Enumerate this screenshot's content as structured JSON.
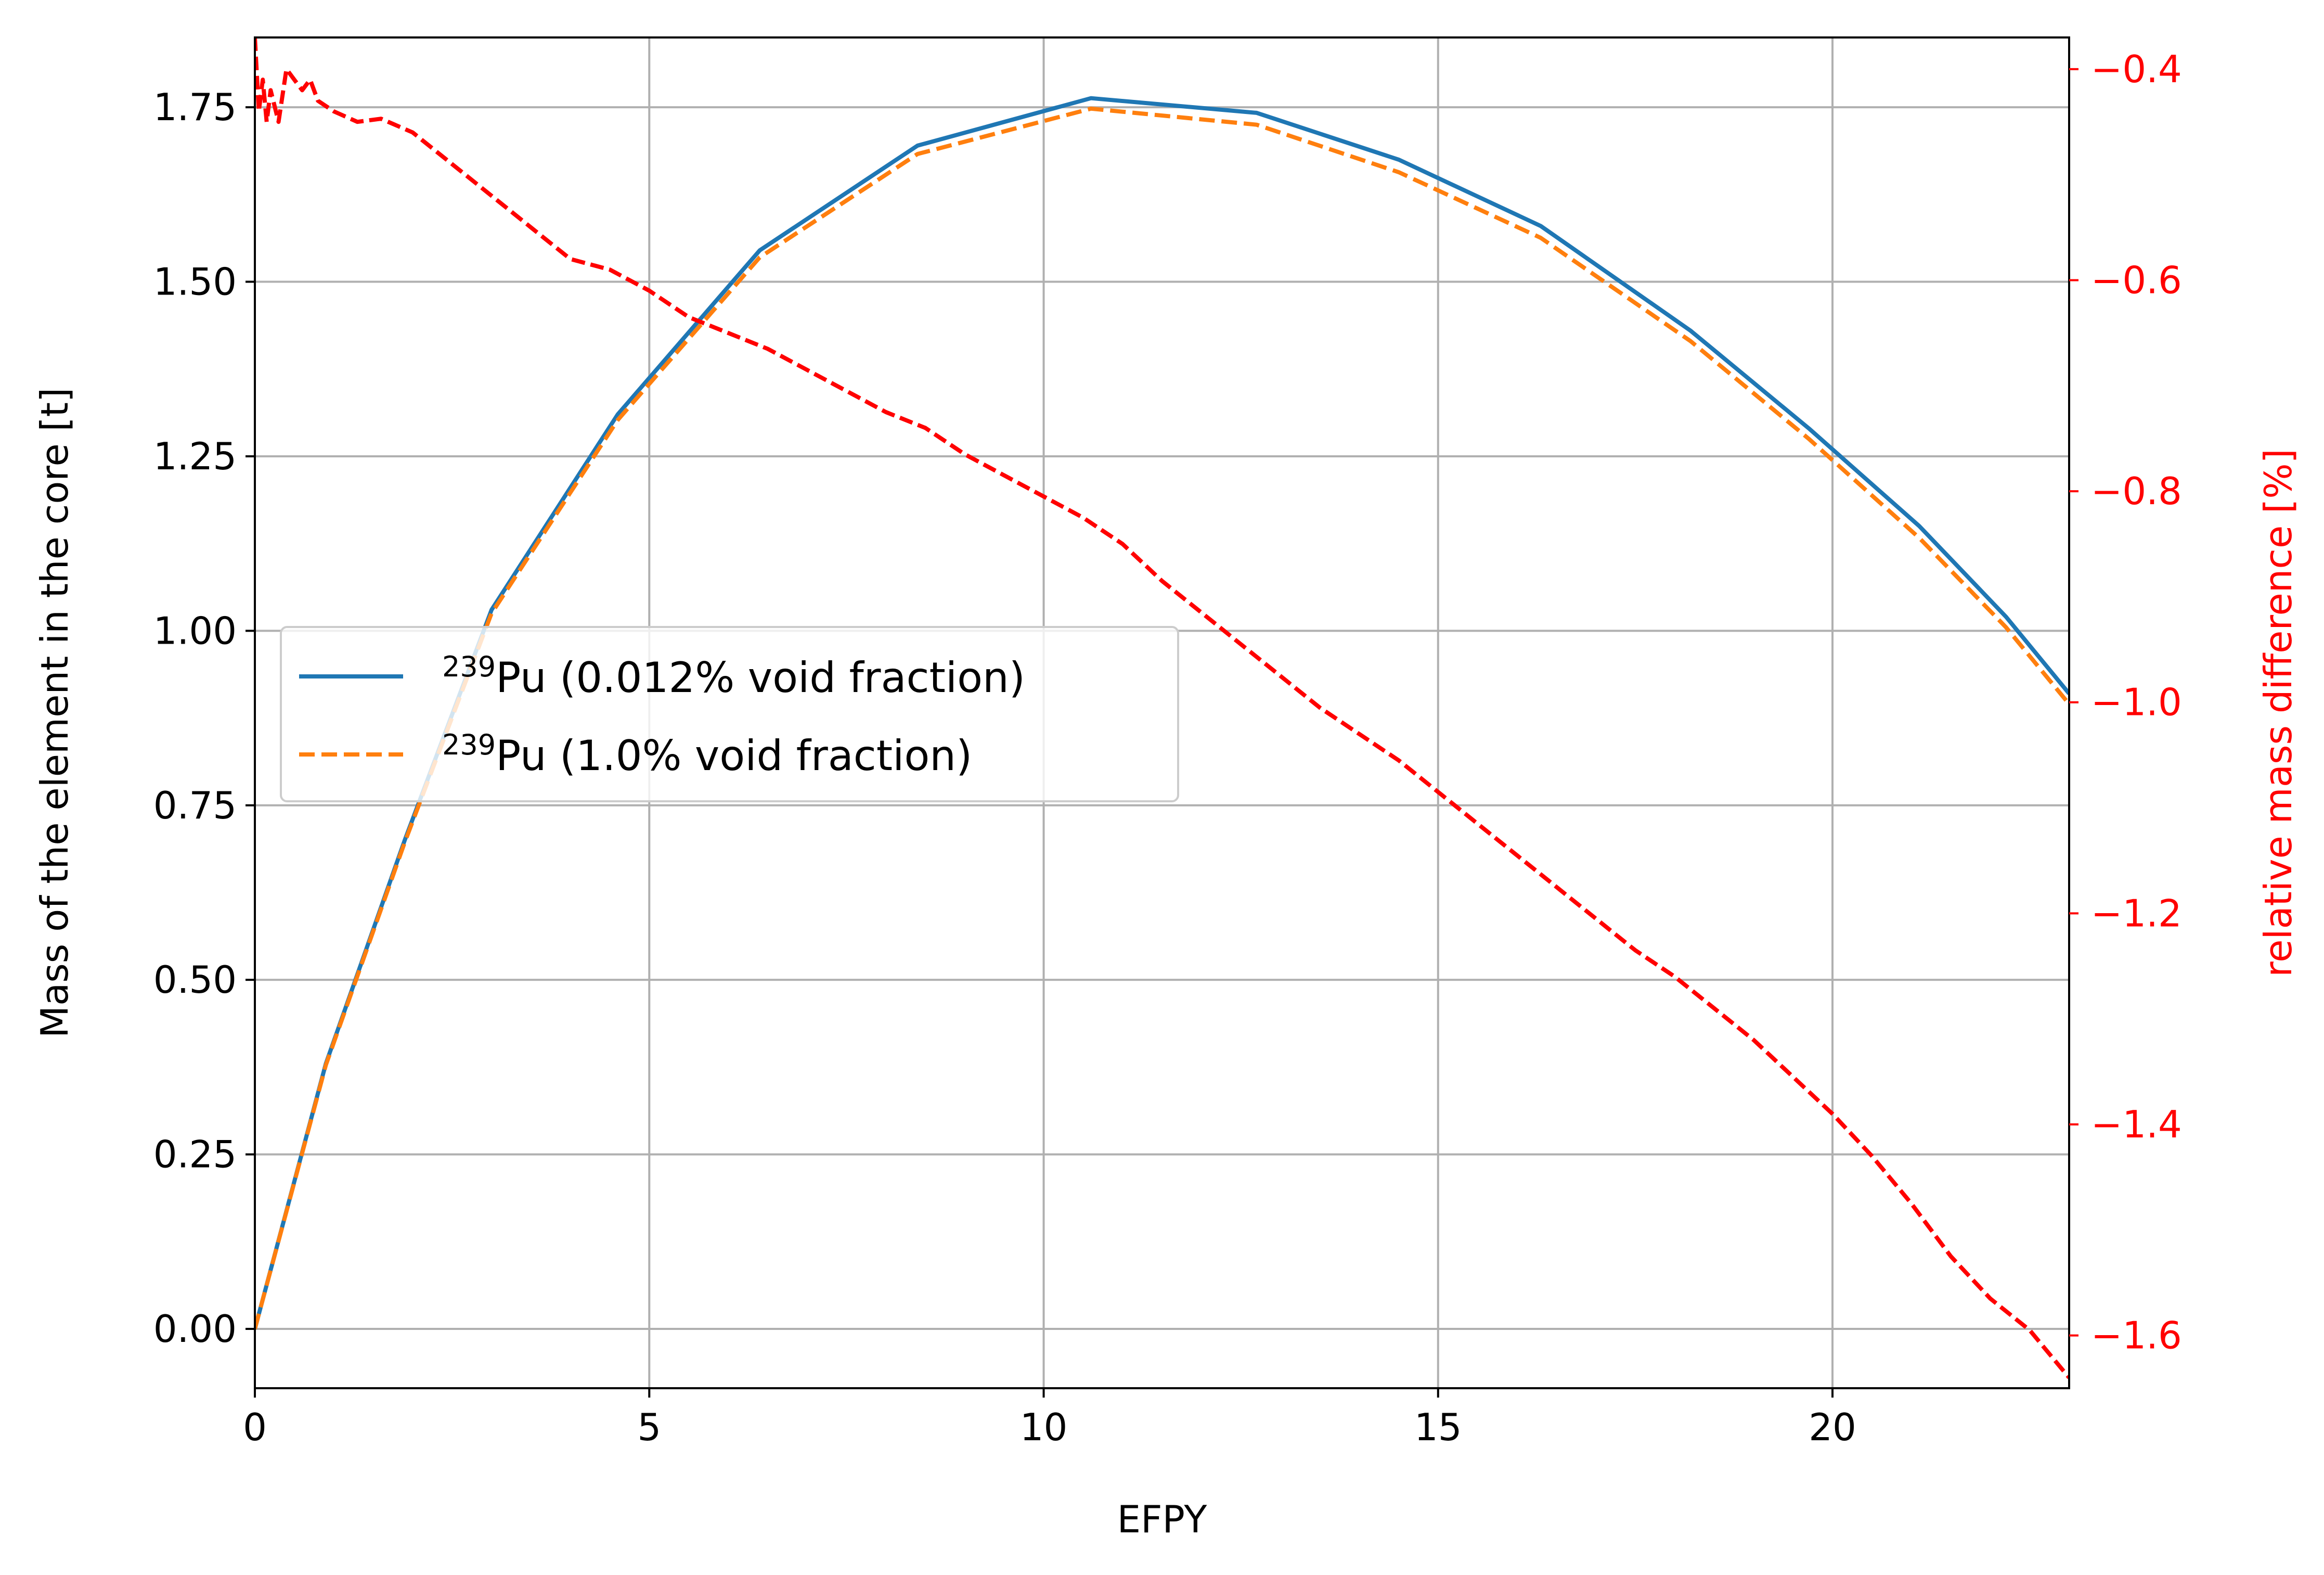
{
  "chart_data": {
    "type": "line",
    "xlabel": "EFPY",
    "ylabel": "Mass of the element in the core [t]",
    "y2label": "relative mass difference [%]",
    "xlim": [
      0,
      23
    ],
    "ylim": [
      -0.085,
      1.85
    ],
    "y2lim": [
      -1.65,
      -0.37
    ],
    "x_ticks": [
      0,
      5,
      10,
      15,
      20
    ],
    "y_ticks": [
      0.0,
      0.25,
      0.5,
      0.75,
      1.0,
      1.25,
      1.5,
      1.75
    ],
    "y2_ticks": [
      -1.6,
      -1.4,
      -1.2,
      -1.0,
      -0.8,
      -0.6,
      -0.4
    ],
    "x_tick_labels": [
      "0",
      "5",
      "10",
      "15",
      "20"
    ],
    "y_tick_labels": [
      "0.00",
      "0.25",
      "0.50",
      "0.75",
      "1.00",
      "1.25",
      "1.50",
      "1.75"
    ],
    "y2_tick_labels": [
      "−1.6",
      "−1.4",
      "−1.2",
      "−1.0",
      "−0.8",
      "−0.6",
      "−0.4"
    ],
    "grid": true,
    "legend_position": "center-left",
    "colors": {
      "series1": "#1f77b4",
      "series2": "#ff7f0e",
      "relative": "#ff0000",
      "grid": "#b0b0b0"
    },
    "series": [
      {
        "name": "239Pu (0.012% void fraction)",
        "legend_sup": "239",
        "legend_rest": "Pu (0.012% void fraction)",
        "axis": "left",
        "style": "solid",
        "x": [
          0,
          0.9,
          1.9,
          3.0,
          4.6,
          6.4,
          8.4,
          10.6,
          12.7,
          14.5,
          16.3,
          18.2,
          19.7,
          21.1,
          22.2,
          23.0
        ],
        "y": [
          0.0,
          0.38,
          0.7,
          1.03,
          1.31,
          1.545,
          1.695,
          1.763,
          1.742,
          1.675,
          1.58,
          1.43,
          1.29,
          1.15,
          1.02,
          0.91
        ]
      },
      {
        "name": "239Pu (1.0% void fraction)",
        "legend_sup": "239",
        "legend_rest": "Pu (1.0% void fraction)",
        "axis": "left",
        "style": "dashed",
        "x": [
          0,
          0.9,
          1.9,
          3.0,
          4.6,
          6.4,
          8.4,
          10.6,
          12.7,
          14.5,
          16.3,
          18.2,
          19.7,
          21.1,
          22.2,
          23.0
        ],
        "y": [
          0.0,
          0.378,
          0.697,
          1.025,
          1.302,
          1.535,
          1.683,
          1.748,
          1.725,
          1.657,
          1.563,
          1.415,
          1.275,
          1.133,
          1.005,
          0.895
        ]
      },
      {
        "axis": "right",
        "style": "dashed",
        "x": [
          0,
          0.05,
          0.1,
          0.15,
          0.2,
          0.3,
          0.4,
          0.5,
          0.6,
          0.7,
          0.8,
          1.0,
          1.3,
          1.6,
          2.0,
          2.5,
          3.0,
          3.5,
          4.0,
          4.5,
          5.0,
          5.5,
          6.0,
          6.5,
          7.0,
          7.5,
          8.0,
          8.5,
          9.0,
          9.5,
          10.0,
          10.5,
          11.0,
          11.5,
          12.0,
          12.5,
          13.0,
          13.5,
          14.0,
          14.5,
          15.0,
          15.5,
          16.0,
          16.5,
          17.0,
          17.5,
          18.0,
          18.5,
          19.0,
          19.5,
          20.0,
          20.5,
          21.0,
          21.5,
          22.0,
          22.5,
          23.0
        ],
        "y": [
          -0.37,
          -0.44,
          -0.41,
          -0.45,
          -0.42,
          -0.45,
          -0.4,
          -0.41,
          -0.42,
          -0.41,
          -0.43,
          -0.44,
          -0.45,
          -0.447,
          -0.46,
          -0.49,
          -0.52,
          -0.55,
          -0.58,
          -0.59,
          -0.61,
          -0.635,
          -0.65,
          -0.665,
          -0.685,
          -0.705,
          -0.725,
          -0.74,
          -0.765,
          -0.785,
          -0.805,
          -0.825,
          -0.85,
          -0.885,
          -0.915,
          -0.945,
          -0.975,
          -1.005,
          -1.03,
          -1.055,
          -1.085,
          -1.115,
          -1.145,
          -1.175,
          -1.205,
          -1.235,
          -1.26,
          -1.29,
          -1.32,
          -1.355,
          -1.39,
          -1.43,
          -1.475,
          -1.525,
          -1.565,
          -1.595,
          -1.64
        ]
      }
    ]
  }
}
